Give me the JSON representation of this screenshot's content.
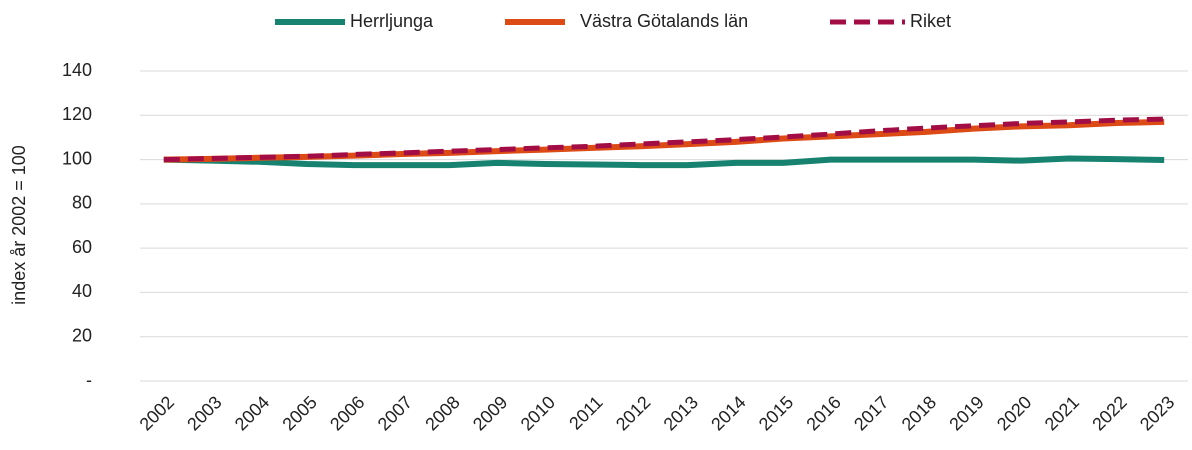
{
  "chart_data": {
    "type": "line",
    "y_label": "index år 2002 = 100",
    "categories": [
      "2002",
      "2003",
      "2004",
      "2005",
      "2006",
      "2007",
      "2008",
      "2009",
      "2010",
      "2011",
      "2012",
      "2013",
      "2014",
      "2015",
      "2016",
      "2017",
      "2018",
      "2019",
      "2020",
      "2021",
      "2022",
      "2023"
    ],
    "series": [
      {
        "name": "Herrljunga",
        "color": "#16826f",
        "values": [
          100,
          99.5,
          99,
          98,
          97.5,
          97.5,
          97.5,
          98.5,
          98,
          97.8,
          97.5,
          97.5,
          98.5,
          98.5,
          100,
          100,
          100,
          100,
          99.5,
          100.5,
          100.2,
          99.8
        ]
      },
      {
        "name": "Västra Götalands län",
        "color": "#dc4a16",
        "values": [
          100,
          100.3,
          100.8,
          101.2,
          101.8,
          102.5,
          103,
          103.8,
          104.5,
          105.3,
          106,
          107,
          108,
          109.5,
          110.5,
          111.5,
          112.5,
          114,
          115,
          115.5,
          116.5,
          117
        ]
      },
      {
        "name": "Riket",
        "color": "#a30d45",
        "dashed": true,
        "values": [
          100,
          100.5,
          101,
          101.5,
          102.3,
          103,
          103.8,
          104.5,
          105.3,
          106,
          107,
          108,
          109,
          110.2,
          111.5,
          113,
          114.2,
          115.3,
          116.3,
          117,
          117.8,
          118.3
        ]
      }
    ],
    "ylim": [
      0,
      140
    ],
    "yticks": [
      {
        "value": 0,
        "label": "-"
      },
      20,
      40,
      60,
      80,
      100,
      120,
      140
    ],
    "grid": true,
    "legend": "top"
  }
}
